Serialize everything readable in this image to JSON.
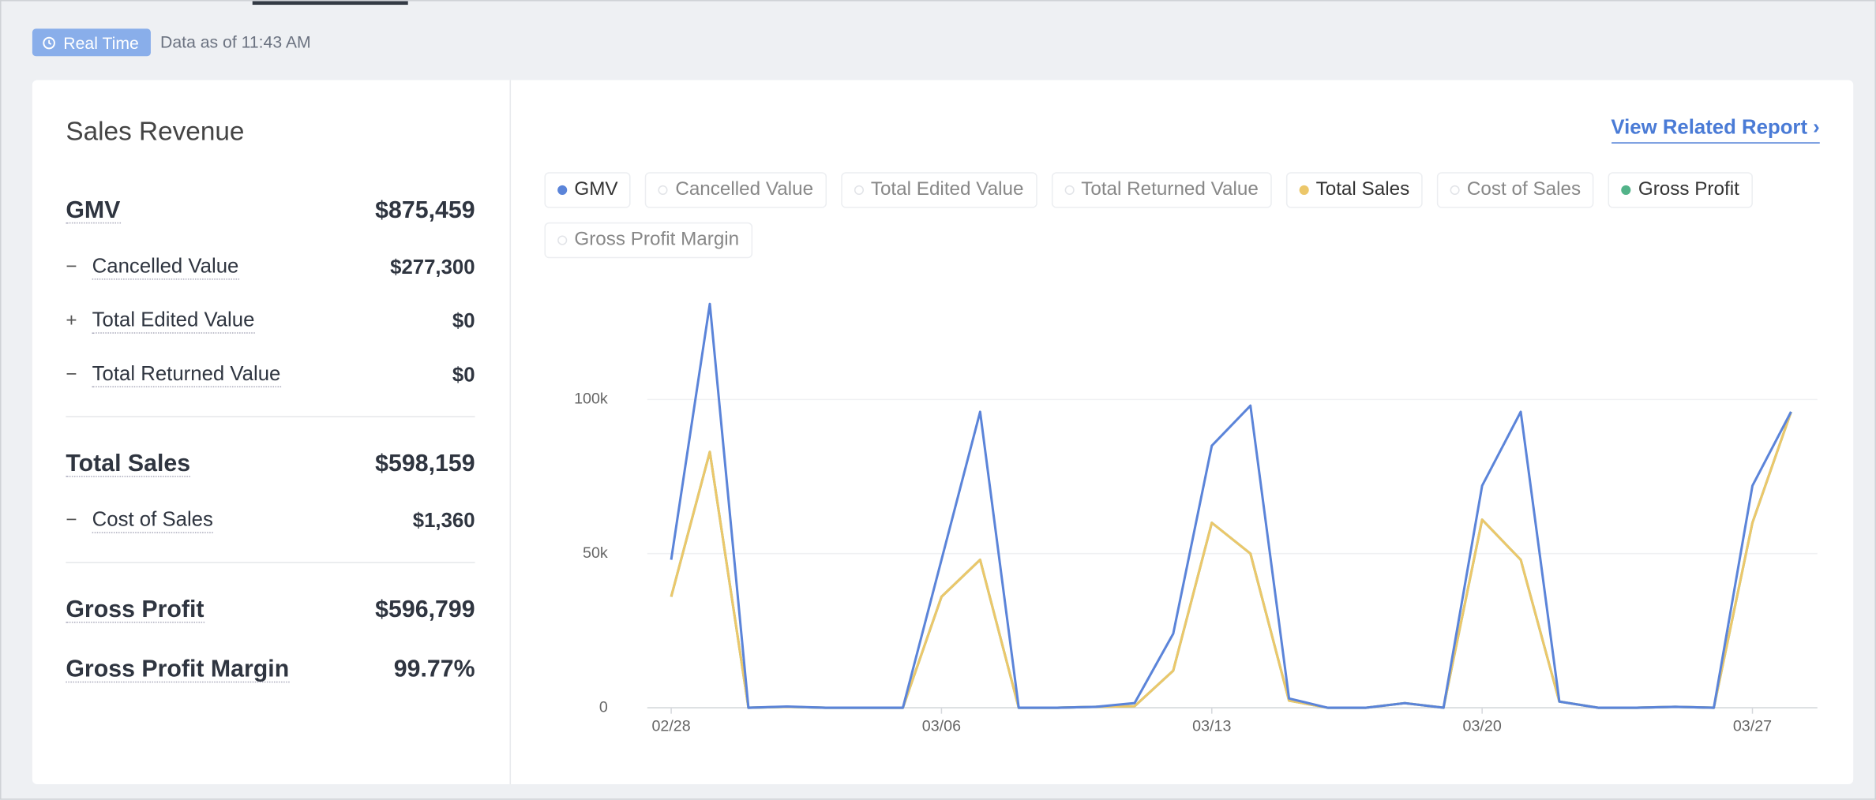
{
  "header": {
    "badge": "Real Time",
    "status": "Data as of 11:43 AM"
  },
  "summary": {
    "title": "Sales Revenue",
    "groups": [
      [
        {
          "label": "GMV",
          "value": "$875,459",
          "major": true
        },
        {
          "sign": "−",
          "label": "Cancelled Value",
          "value": "$277,300"
        },
        {
          "sign": "+",
          "label": "Total Edited Value",
          "value": "$0"
        },
        {
          "sign": "−",
          "label": "Total Returned Value",
          "value": "$0"
        }
      ],
      [
        {
          "label": "Total Sales",
          "value": "$598,159",
          "major": true
        },
        {
          "sign": "−",
          "label": "Cost of Sales",
          "value": "$1,360"
        }
      ],
      [
        {
          "label": "Gross Profit",
          "value": "$596,799",
          "major": true
        },
        {
          "label": "Gross Profit Margin",
          "value": "99.77%",
          "major": true
        }
      ]
    ]
  },
  "link": "View Related Report ›",
  "chart_data": {
    "type": "line",
    "categories": [
      "02/28",
      null,
      null,
      null,
      null,
      null,
      null,
      "03/06",
      null,
      null,
      null,
      null,
      null,
      null,
      "03/13",
      null,
      null,
      null,
      null,
      null,
      null,
      "03/20",
      null,
      null,
      null,
      null,
      null,
      null,
      "03/27",
      null
    ],
    "series": [
      {
        "name": "GMV",
        "color": "#5b84d9",
        "active": true,
        "values": [
          48000,
          131000,
          0,
          400,
          0,
          0,
          0,
          48000,
          96000,
          0,
          0,
          300,
          1500,
          24000,
          85000,
          98000,
          3000,
          0,
          0,
          1500,
          0,
          72000,
          96000,
          2000,
          0,
          0,
          300,
          0,
          72000,
          96000
        ]
      },
      {
        "name": "Cancelled Value",
        "active": false
      },
      {
        "name": "Total Edited Value",
        "active": false
      },
      {
        "name": "Total Returned Value",
        "active": false
      },
      {
        "name": "Total Sales",
        "color": "#ecc76a",
        "active": true,
        "values": [
          36000,
          83000,
          0,
          300,
          0,
          0,
          0,
          36000,
          48000,
          0,
          0,
          300,
          500,
          12000,
          60000,
          50000,
          2300,
          0,
          0,
          1500,
          0,
          61000,
          48000,
          2000,
          0,
          0,
          300,
          0,
          60000,
          96000
        ]
      },
      {
        "name": "Cost of Sales",
        "active": false
      },
      {
        "name": "Gross Profit",
        "color": "#52b389",
        "active": true,
        "values": [
          36000,
          83000,
          0,
          300,
          0,
          0,
          0,
          36000,
          48000,
          0,
          0,
          300,
          500,
          12000,
          60000,
          50000,
          2300,
          0,
          0,
          1500,
          0,
          61000,
          48000,
          2000,
          0,
          0,
          300,
          0,
          60000,
          96000
        ]
      },
      {
        "name": "Gross Profit Margin",
        "active": false
      }
    ],
    "ylim": [
      0,
      140000
    ],
    "yticks": [
      0,
      {
        "value": 50000,
        "label": "50k"
      },
      {
        "value": 100000,
        "label": "100k"
      }
    ],
    "grid": true
  }
}
